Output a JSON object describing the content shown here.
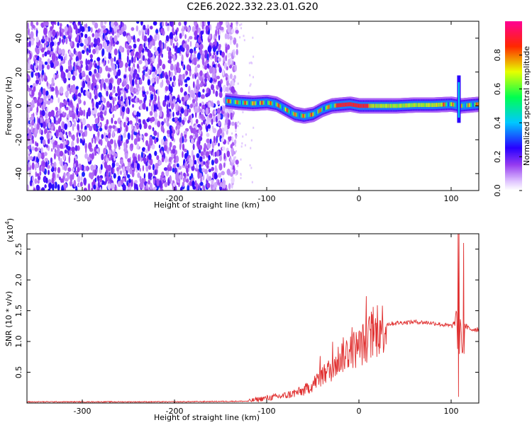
{
  "title": "C2E6.2022.332.23.01.G20",
  "chart_data": [
    {
      "type": "heatmap",
      "xlabel": "Height of straight line (km)",
      "ylabel": "Frequency (Hz)",
      "xlim": [
        -360,
        130
      ],
      "ylim": [
        -50,
        50
      ],
      "xticks": [
        -300,
        -200,
        -100,
        0,
        100
      ],
      "yticks": [
        -40,
        -20,
        0,
        20,
        40
      ],
      "colorbar": {
        "label": "Normalized spectral amplitude",
        "range": [
          0.0,
          1.0
        ],
        "ticks": [
          0.0,
          0.2,
          0.4,
          0.6,
          0.8
        ],
        "colormap": "rainbow (white-purple-blue-cyan-green-yellow-red-pink)"
      },
      "noise_region_x": [
        -360,
        -140
      ],
      "signal_track": {
        "x": [
          -145,
          -130,
          -115,
          -100,
          -90,
          -80,
          -70,
          -60,
          -50,
          -40,
          -30,
          -20,
          -10,
          0,
          20,
          40,
          60,
          80,
          100,
          110,
          120,
          130
        ],
        "y": [
          3,
          2,
          1.5,
          2,
          1,
          -2,
          -5,
          -6,
          -5,
          -2,
          0,
          0.5,
          1,
          0,
          0,
          0,
          0.5,
          0.5,
          1,
          0,
          0.5,
          1
        ]
      },
      "spike": {
        "x": 108,
        "ymin": -10,
        "ymax": 18
      }
    },
    {
      "type": "line",
      "xlabel": "Height of straight line (km)",
      "ylabel": "SNR (10 * v/v)",
      "y_multiplier_label": "(x10",
      "y_multiplier_exp": "4",
      "xlim": [
        -360,
        130
      ],
      "ylim": [
        0,
        2.75
      ],
      "xticks": [
        -300,
        -200,
        -100,
        0,
        100
      ],
      "yticks": [
        0.5,
        1.0,
        1.5,
        2.0,
        2.5
      ],
      "line_color": "#e03030",
      "series": [
        {
          "x": [
            -360,
            -300,
            -200,
            -120,
            -110,
            -100,
            -80,
            -60,
            -50,
            -40,
            -30,
            -20,
            -10,
            0,
            10,
            20,
            30,
            40,
            60,
            80,
            100,
            104,
            106,
            108,
            110,
            112,
            115,
            120,
            130
          ],
          "values": [
            0.02,
            0.02,
            0.02,
            0.03,
            0.06,
            0.08,
            0.12,
            0.2,
            0.3,
            0.45,
            0.55,
            0.75,
            0.85,
            0.9,
            1.05,
            1.15,
            1.28,
            1.3,
            1.32,
            1.3,
            1.25,
            1.3,
            1.5,
            0.2,
            1.4,
            0.8,
            1.25,
            1.2,
            1.2
          ]
        }
      ]
    }
  ]
}
